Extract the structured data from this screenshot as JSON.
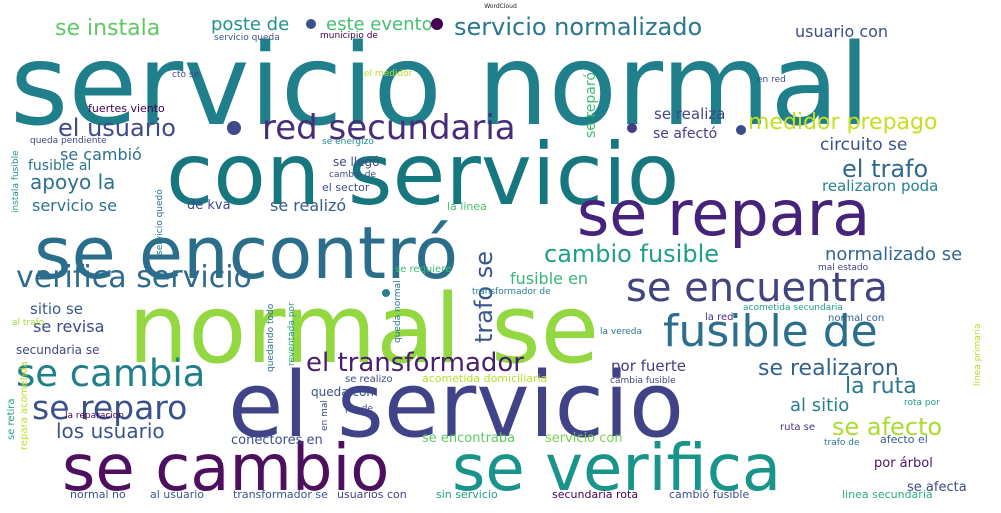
{
  "chart_data": {
    "type": "wordcloud",
    "title": "WordCloud",
    "words": [
      {
        "text": "servicio normal",
        "color": "#1f7f8b"
      },
      {
        "text": "con servicio",
        "color": "#17777f"
      },
      {
        "text": "se encontró",
        "color": "#2b6e8c"
      },
      {
        "text": "se repara",
        "color": "#46237a"
      },
      {
        "text": "normal se",
        "color": "#93d741"
      },
      {
        "text": "el servicio",
        "color": "#404387"
      },
      {
        "text": "se cambio",
        "color": "#4d0f5e"
      },
      {
        "text": "se verifica",
        "color": "#19948a"
      },
      {
        "text": "fusible de",
        "color": "#2c6e8e"
      },
      {
        "text": "se encuentra",
        "color": "#41447f"
      },
      {
        "text": "verifica servicio",
        "color": "#2e6b8e"
      },
      {
        "text": "red secundaria",
        "color": "#472c7a"
      },
      {
        "text": "se cambia",
        "color": "#1f7f8b"
      },
      {
        "text": "se reparo",
        "color": "#3a528b"
      },
      {
        "text": "el transformador",
        "color": "#481f70"
      },
      {
        "text": "servicio normalizado",
        "color": "#2a788e"
      },
      {
        "text": "cambio fusible",
        "color": "#1f9e89"
      },
      {
        "text": "el usuario",
        "color": "#3e4a89"
      },
      {
        "text": "medidor prepago",
        "color": "#c5df20"
      },
      {
        "text": "el trafo",
        "color": "#30688e"
      },
      {
        "text": "se realizaron",
        "color": "#33628d"
      },
      {
        "text": "la ruta",
        "color": "#2a788e"
      },
      {
        "text": "se afecto",
        "color": "#aadc32"
      },
      {
        "text": "se instala",
        "color": "#5ec962"
      },
      {
        "text": "apoyo la",
        "color": "#2d708e"
      },
      {
        "text": "normalizado se",
        "color": "#31688e"
      },
      {
        "text": "los usuario",
        "color": "#3b528b"
      },
      {
        "text": "al sitio",
        "color": "#277f8e"
      },
      {
        "text": "trafo se",
        "color": "#3a548c"
      },
      {
        "text": "circuito se",
        "color": "#3b518b"
      },
      {
        "text": "poste de",
        "color": "#20938c"
      },
      {
        "text": "este evento",
        "color": "#46c06f"
      },
      {
        "text": "usuario con",
        "color": "#3e4c8a"
      },
      {
        "text": "fusible en",
        "color": "#35b779"
      },
      {
        "text": "sitio se",
        "color": "#38598c"
      },
      {
        "text": "se revisa",
        "color": "#3e4989"
      },
      {
        "text": "se cambió",
        "color": "#2d708e"
      },
      {
        "text": "se realiza",
        "color": "#404688"
      },
      {
        "text": "servicio se",
        "color": "#2c728e"
      },
      {
        "text": "se realizó",
        "color": "#365d8d"
      },
      {
        "text": "realizaron poda",
        "color": "#25848e"
      },
      {
        "text": "por fuerte",
        "color": "#433d84"
      },
      {
        "text": "se reparó",
        "color": "#3dbc74"
      },
      {
        "text": "se afectó",
        "color": "#433e85"
      },
      {
        "text": "fusible al",
        "color": "#2c738e"
      },
      {
        "text": "de kva",
        "color": "#3e4a89"
      },
      {
        "text": "conectores en",
        "color": "#3c4f8a"
      },
      {
        "text": "se encontraba",
        "color": "#5ec962"
      },
      {
        "text": "servicio con",
        "color": "#7ad151"
      },
      {
        "text": "queda con",
        "color": "#3a548c"
      },
      {
        "text": "secundaria se",
        "color": "#404588"
      },
      {
        "text": "por árbol",
        "color": "#481668"
      },
      {
        "text": "se afecta",
        "color": "#3f4788"
      },
      {
        "text": "normal no",
        "color": "#3b518b"
      },
      {
        "text": "al usuario",
        "color": "#38588c"
      },
      {
        "text": "transformador se",
        "color": "#39558c"
      },
      {
        "text": "usuarios con",
        "color": "#424086"
      },
      {
        "text": "sin servicio",
        "color": "#1f9e89"
      },
      {
        "text": "secundaria rota",
        "color": "#440154"
      },
      {
        "text": "cambió fusible",
        "color": "#3e4989"
      },
      {
        "text": "linea secundaria",
        "color": "#29af7f"
      },
      {
        "text": "afecto el",
        "color": "#34618d"
      },
      {
        "text": "se llegó",
        "color": "#3e4a89"
      },
      {
        "text": "el sector",
        "color": "#3b528b"
      },
      {
        "text": "la linea",
        "color": "#4ac16d"
      },
      {
        "text": "fuertes viento",
        "color": "#440154"
      },
      {
        "text": "servicio queda",
        "color": "#38588c"
      },
      {
        "text": "municipio de",
        "color": "#440154"
      },
      {
        "text": "cto se",
        "color": "#3f4889"
      },
      {
        "text": "el medidor",
        "color": "#b5de2b"
      },
      {
        "text": "en red",
        "color": "#3e4c8a"
      },
      {
        "text": "queda pendiente",
        "color": "#404688"
      },
      {
        "text": "se energizó",
        "color": "#21918c"
      },
      {
        "text": "cambio de",
        "color": "#3e4a89"
      },
      {
        "text": "instala fusible",
        "color": "#21918c"
      },
      {
        "text": "servicio quedó",
        "color": "#2c728e"
      },
      {
        "text": "se requiere",
        "color": "#3dbc74"
      },
      {
        "text": "transformador de",
        "color": "#26828e"
      },
      {
        "text": "mal estado",
        "color": "#404588"
      },
      {
        "text": "acometida secundaria",
        "color": "#1f9e89"
      },
      {
        "text": "la red",
        "color": "#46327e"
      },
      {
        "text": "normal con",
        "color": "#34618d"
      },
      {
        "text": "al trafo",
        "color": "#9fda3a"
      },
      {
        "text": "quedando todo",
        "color": "#2d708e"
      },
      {
        "text": "reventada por",
        "color": "#1f9e89"
      },
      {
        "text": "queda normal",
        "color": "#2a788e"
      },
      {
        "text": "la vereda",
        "color": "#2c738e"
      },
      {
        "text": "se realizo",
        "color": "#3e4a89"
      },
      {
        "text": "acometida domiciliaria",
        "color": "#b8de29"
      },
      {
        "text": "cambia fusible",
        "color": "#404688"
      },
      {
        "text": "rota por",
        "color": "#1f9e89"
      },
      {
        "text": "linea primaria",
        "color": "#b5de2b"
      },
      {
        "text": "repara acometida",
        "color": "#bddf26"
      },
      {
        "text": "se retira",
        "color": "#1f9e89"
      },
      {
        "text": "la reparacion",
        "color": "#440154"
      },
      {
        "text": "pin de",
        "color": "#3e4a89"
      },
      {
        "text": "en mal",
        "color": "#3e4a89"
      },
      {
        "text": "ruta se",
        "color": "#46327e"
      },
      {
        "text": "trafo de",
        "color": "#2a788e"
      }
    ]
  }
}
